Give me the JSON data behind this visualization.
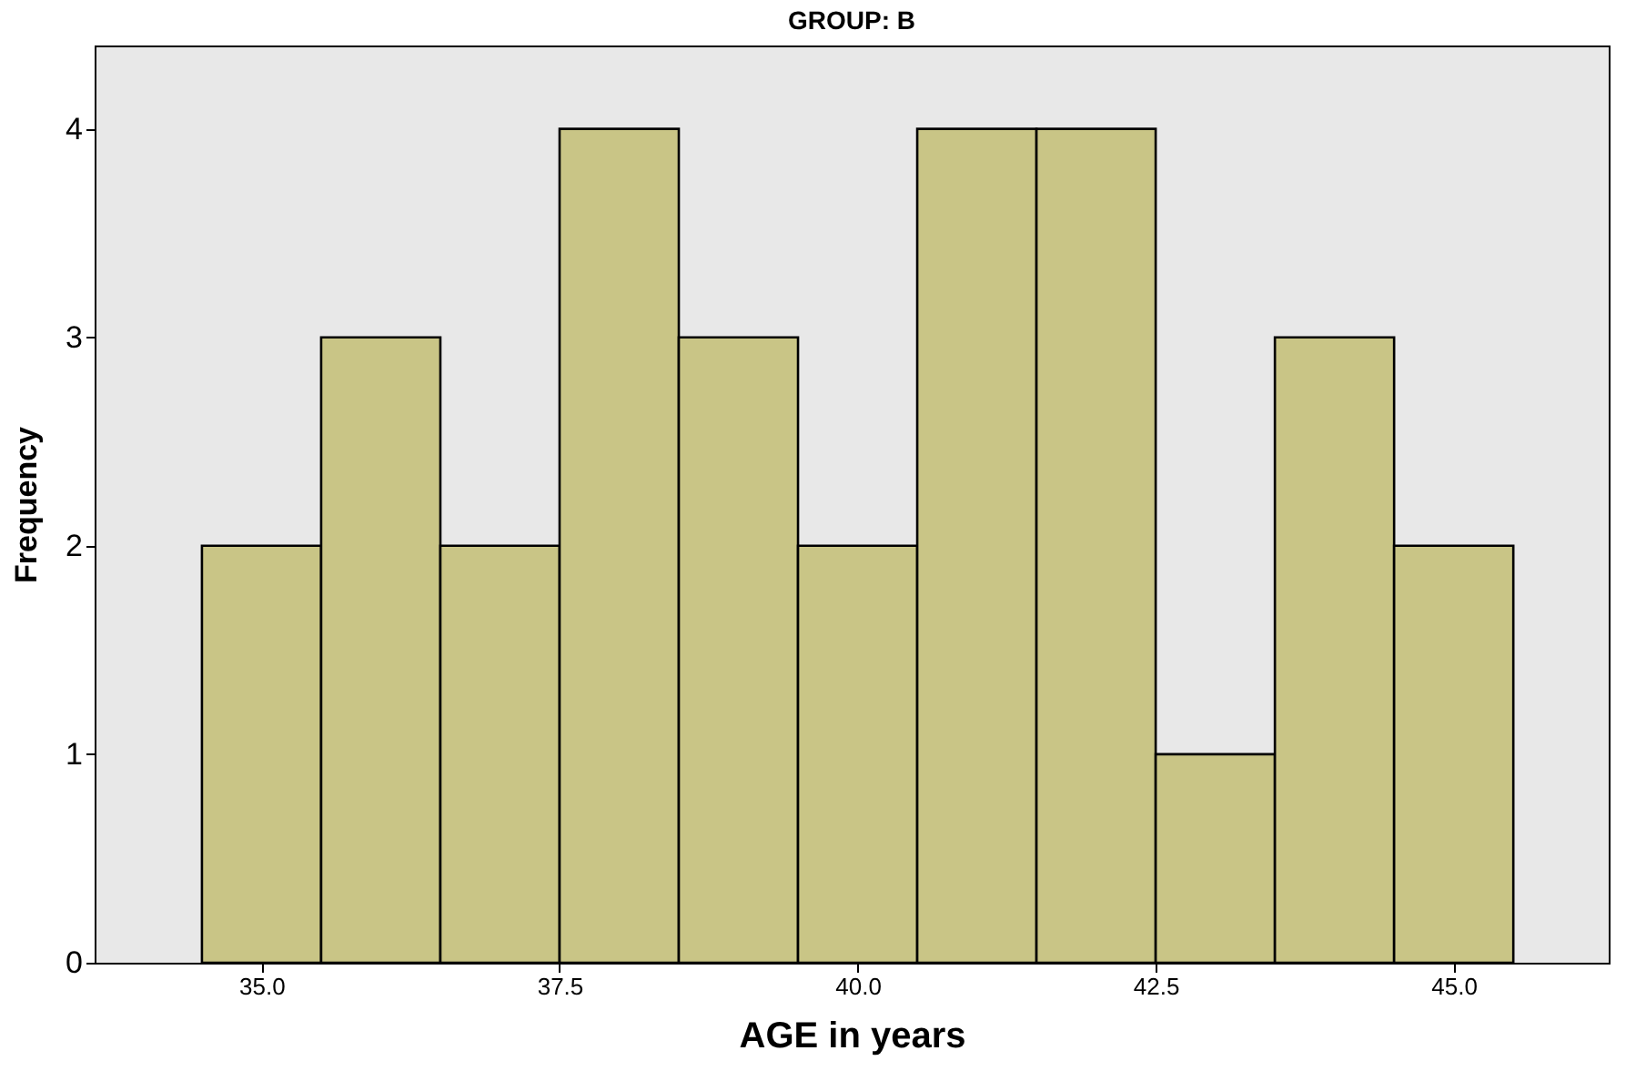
{
  "chart_data": {
    "type": "histogram",
    "title": "GROUP: B",
    "xlabel": "AGE in years",
    "ylabel": "Frequency",
    "bins": [
      34.5,
      35.5,
      36.5,
      37.5,
      38.5,
      39.5,
      40.5,
      41.5,
      42.5,
      43.5,
      44.5,
      45.5
    ],
    "values": [
      2,
      3,
      2,
      4,
      3,
      2,
      4,
      4,
      1,
      3,
      2
    ],
    "color": "#c9c586",
    "xlim": [
      33.6,
      46.3
    ],
    "xticks": [
      {
        "value": 35,
        "label": "35.0"
      },
      {
        "value": 37.5,
        "label": "37.5"
      },
      {
        "value": 40,
        "label": "40.0"
      },
      {
        "value": 42.5,
        "label": "42.5"
      },
      {
        "value": 45,
        "label": "45.0"
      }
    ],
    "ylim": [
      0,
      4.4
    ],
    "yticks": [
      0,
      1,
      2,
      3,
      4
    ],
    "grid": false
  }
}
